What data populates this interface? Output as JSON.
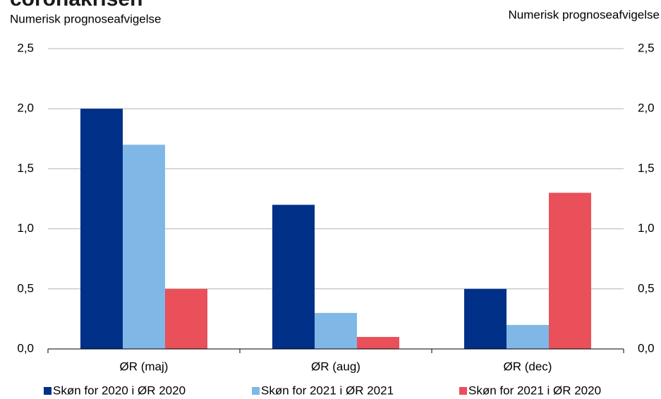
{
  "chart_data": {
    "type": "bar",
    "title": "coronakrisen",
    "ylabel": "Numerisk prognoseafvigelse",
    "y2label": "Numerisk prognoseafvigelse",
    "categories": [
      "ØR (maj)",
      "ØR (aug)",
      "ØR (dec)"
    ],
    "series": [
      {
        "name": "Skøn for 2020 i ØR 2020",
        "color": "#003087",
        "values": [
          2.0,
          1.2,
          0.5
        ]
      },
      {
        "name": "Skøn for 2021 i ØR 2021",
        "color": "#7fb8e6",
        "values": [
          1.7,
          0.3,
          0.2
        ]
      },
      {
        "name": "Skøn for 2021 i ØR 2020",
        "color": "#e9505a",
        "values": [
          0.5,
          0.1,
          1.3
        ]
      }
    ],
    "ylim": [
      0,
      2.5
    ],
    "yticks": [
      {
        "value": 0,
        "label": "0,0"
      },
      {
        "value": 0.5,
        "label": "0,5"
      },
      {
        "value": 1,
        "label": "1,0"
      },
      {
        "value": 1.5,
        "label": "1,5"
      },
      {
        "value": 2,
        "label": "2,0"
      },
      {
        "value": 2.5,
        "label": "2,5"
      }
    ],
    "y2lim": [
      0,
      2.5
    ],
    "y2ticks": [
      {
        "value": 0,
        "label": "0,0"
      },
      {
        "value": 0.5,
        "label": "0,5"
      },
      {
        "value": 1,
        "label": "1,0"
      },
      {
        "value": 1.5,
        "label": "1,5"
      },
      {
        "value": 2,
        "label": "2,0"
      },
      {
        "value": 2.5,
        "label": "2,5"
      }
    ],
    "grid": true
  }
}
